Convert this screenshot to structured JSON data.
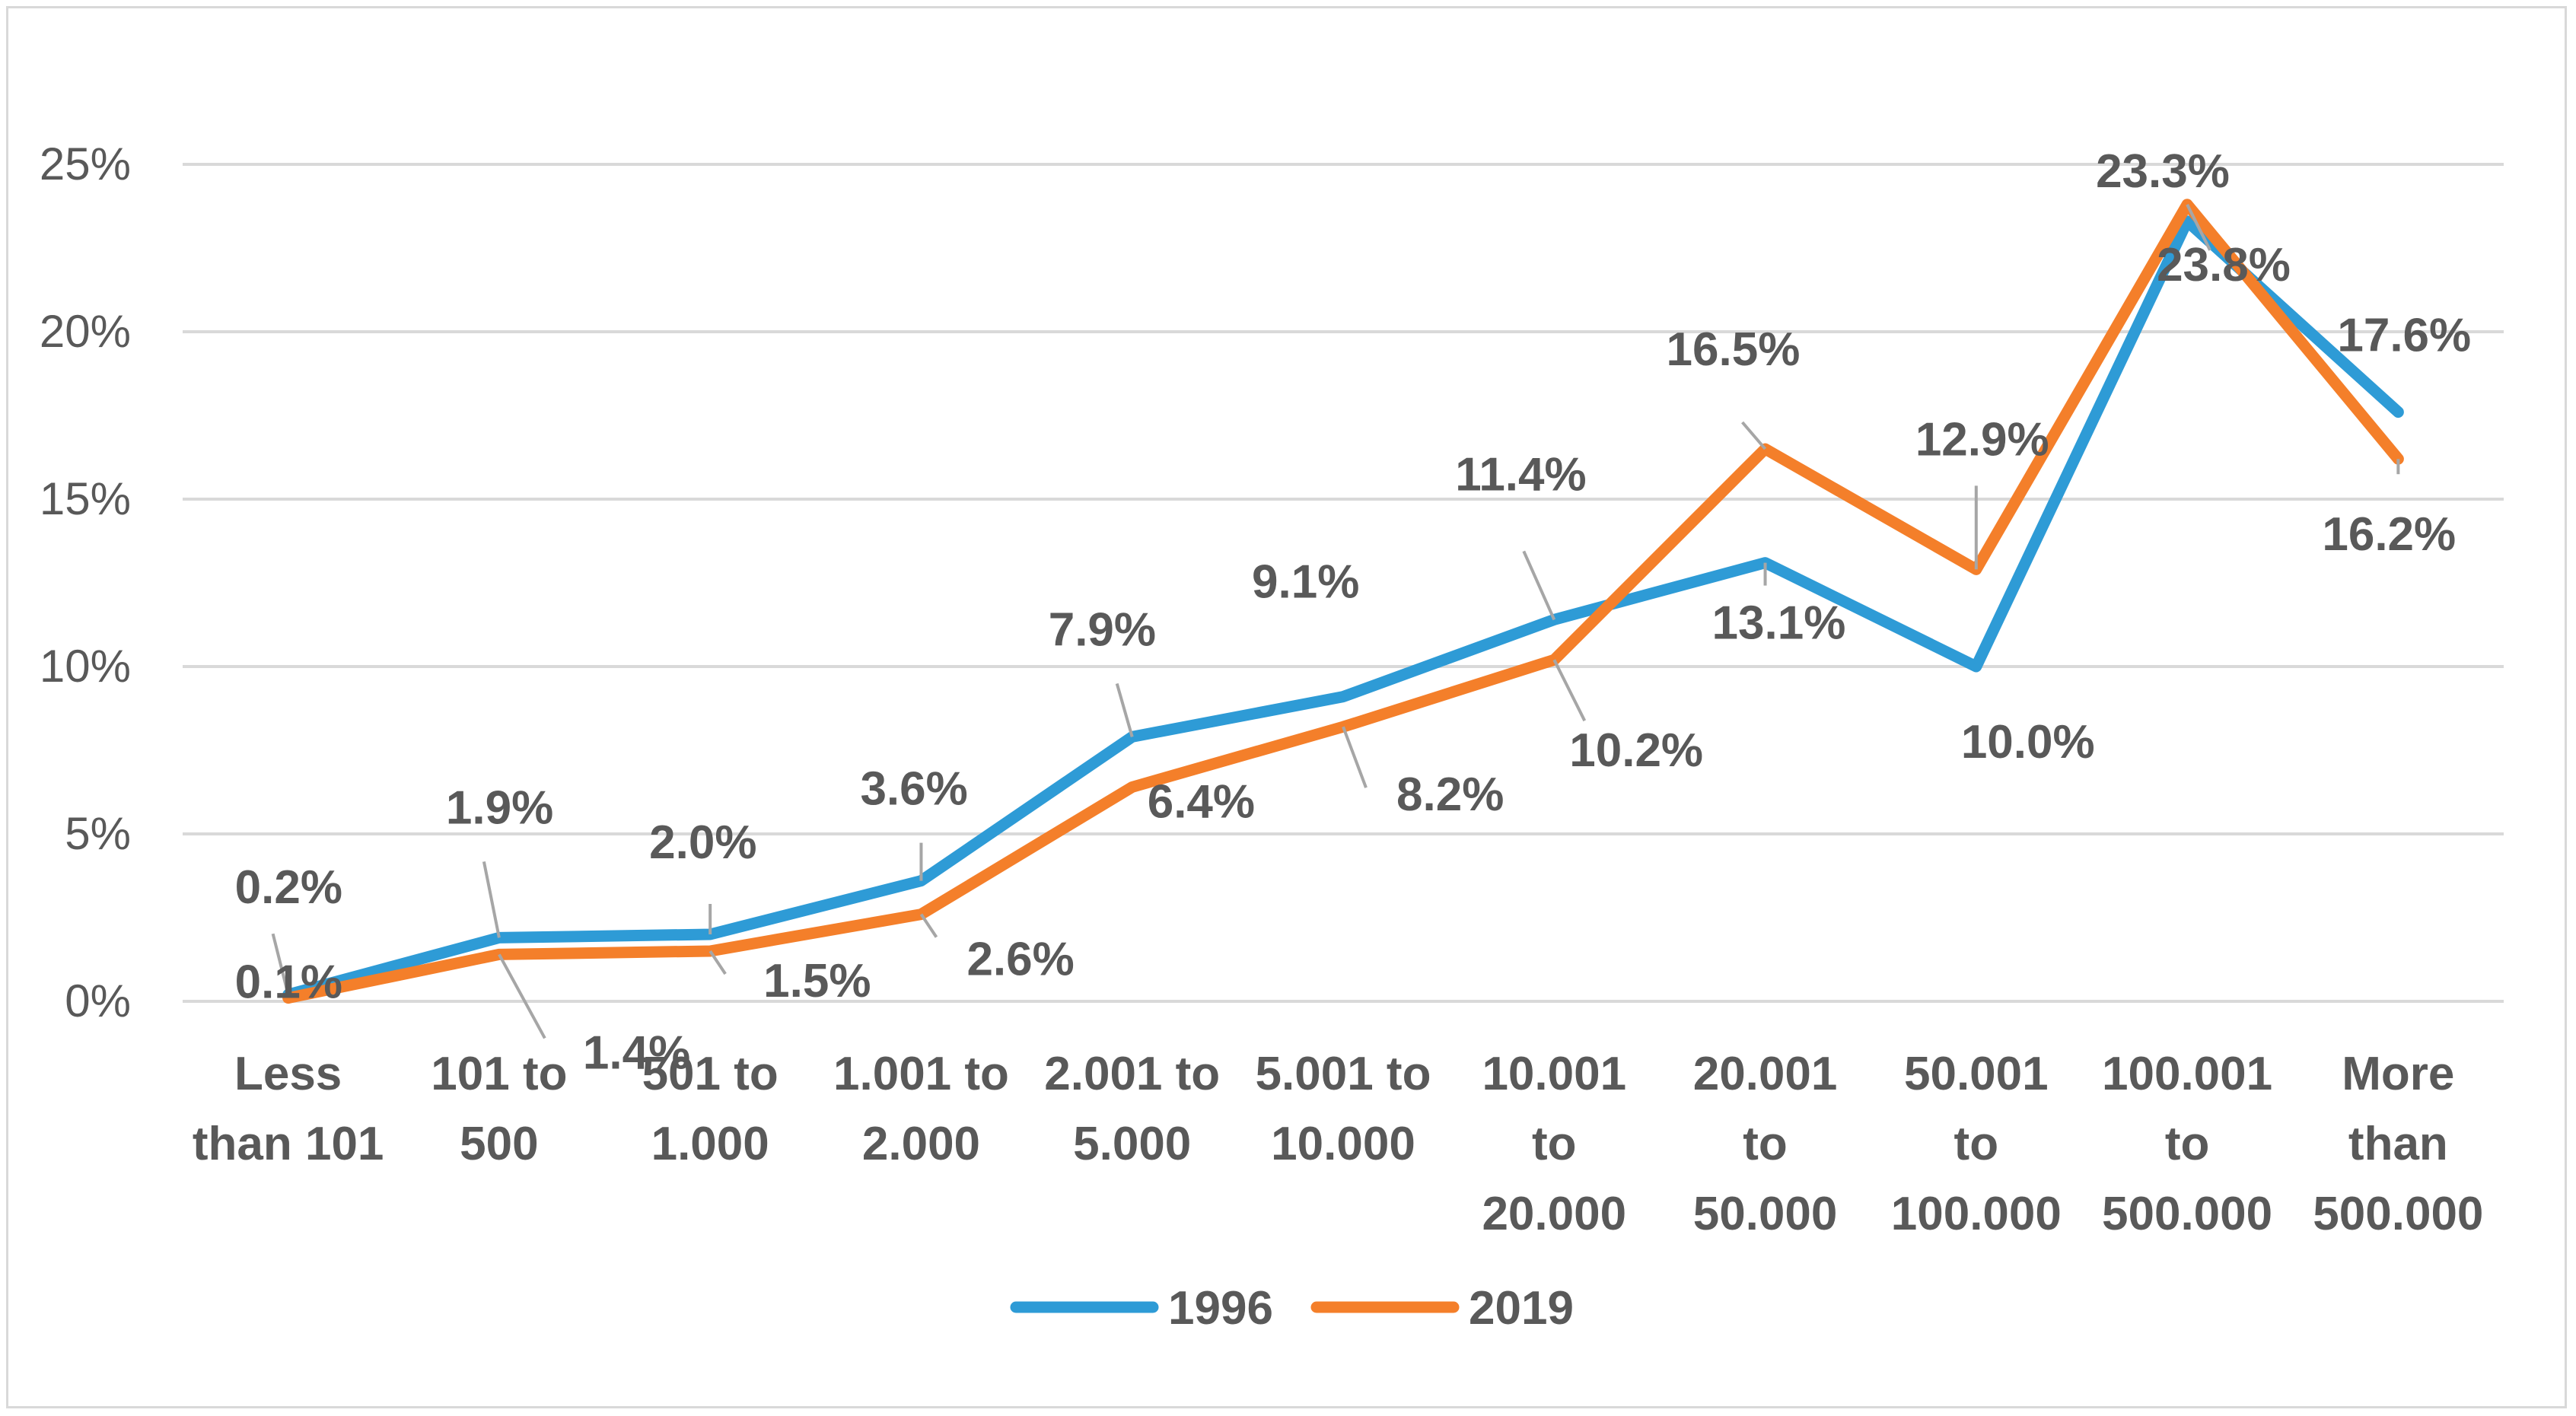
{
  "chart_data": {
    "type": "line",
    "title": "",
    "xlabel": "",
    "ylabel": "",
    "ylim": [
      0,
      25
    ],
    "ytick_labels": [
      "0%",
      "5%",
      "10%",
      "15%",
      "20%",
      "25%"
    ],
    "ytick_values": [
      0,
      5,
      10,
      15,
      20,
      25
    ],
    "categories": [
      [
        "Less",
        "than 101"
      ],
      [
        "101 to",
        "500"
      ],
      [
        "501 to",
        "1.000"
      ],
      [
        "1.001 to",
        "2.000"
      ],
      [
        "2.001 to",
        "5.000"
      ],
      [
        "5.001 to",
        "10.000"
      ],
      [
        "10.001",
        "to",
        "20.000"
      ],
      [
        "20.001",
        "to",
        "50.000"
      ],
      [
        "50.001",
        "to",
        "100.000"
      ],
      [
        "100.001",
        "to",
        "500.000"
      ],
      [
        "More",
        "than",
        "500.000"
      ]
    ],
    "series": [
      {
        "name": "1996",
        "color": "#2e9bd6",
        "values": [
          0.2,
          1.9,
          2.0,
          3.6,
          7.9,
          9.1,
          11.4,
          13.1,
          10.0,
          23.3,
          17.6
        ],
        "labels": [
          "0.2%",
          "1.9%",
          "2.0%",
          "3.6%",
          "7.9%",
          "9.1%",
          "11.4%",
          "13.1%",
          "10.0%",
          "23.3%",
          "17.6%"
        ]
      },
      {
        "name": "2019",
        "color": "#f47f2a",
        "values": [
          0.1,
          1.4,
          1.5,
          2.6,
          6.4,
          8.2,
          10.2,
          16.5,
          12.9,
          23.8,
          16.2
        ],
        "labels": [
          "0.1%",
          "1.4%",
          "1.5%",
          "2.6%",
          "6.4%",
          "8.2%",
          "10.2%",
          "16.5%",
          "12.9%",
          "23.8%",
          "16.2%"
        ]
      }
    ],
    "grid": true,
    "legend_position": "bottom"
  }
}
